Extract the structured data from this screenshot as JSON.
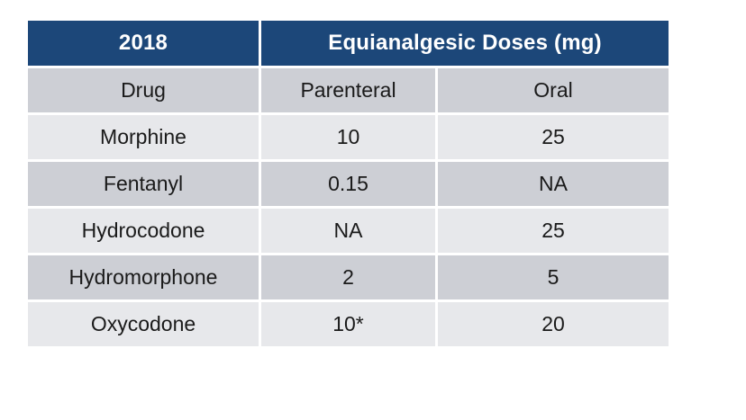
{
  "chart_data": {
    "type": "table",
    "title": "Equianalgesic Doses (mg)",
    "year_label": "2018",
    "columns": [
      "Drug",
      "Parenteral",
      "Oral"
    ],
    "rows": [
      [
        "Morphine",
        "10",
        "25"
      ],
      [
        "Fentanyl",
        "0.15",
        "NA"
      ],
      [
        "Hydrocodone",
        "NA",
        "25"
      ],
      [
        "Hydromorphone",
        "2",
        "5"
      ],
      [
        "Oxycodone",
        "10*",
        "20"
      ]
    ]
  },
  "colors": {
    "header_bg": "#1C4779",
    "header_text": "#FFFFFF",
    "row_medium": "#CDCFD5",
    "row_light": "#E7E8EB",
    "body_text": "#1A1A1A",
    "page_bg": "#FFFFFF"
  }
}
